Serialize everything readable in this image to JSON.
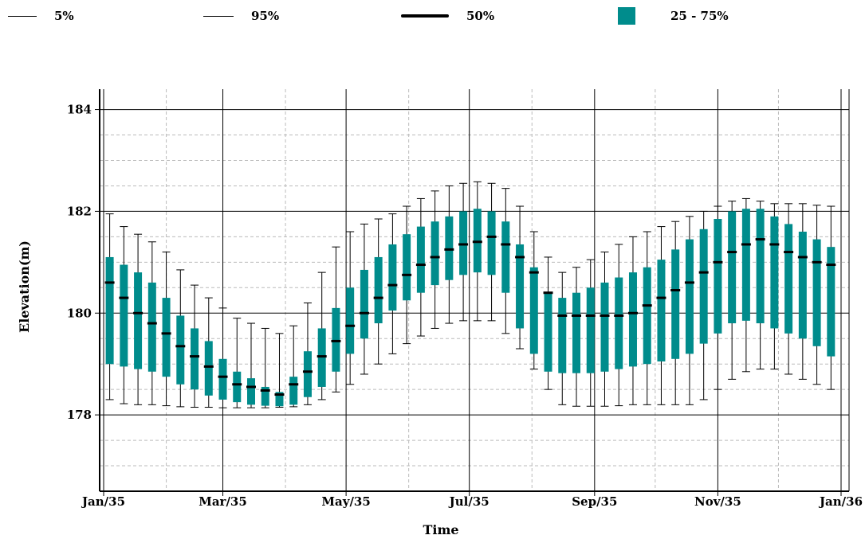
{
  "colors": {
    "box": "#008C8C",
    "median": "#000000",
    "whisker": "#000000",
    "grid": "#bbbbbb",
    "major_grid": "#000000"
  },
  "legend": {
    "p5": {
      "label": "5%",
      "icon": "thin-line"
    },
    "p95": {
      "label": "95%",
      "icon": "thin-line"
    },
    "p50": {
      "label": "50%",
      "icon": "thick-line"
    },
    "iqr": {
      "label": "25 - 75%",
      "icon": "teal-box"
    }
  },
  "chart_data": {
    "type": "box",
    "xlabel": "Time",
    "ylabel": "Elevation(m)",
    "xlim": [
      "1935-01-01",
      "1936-01-01"
    ],
    "ylim": [
      176.5,
      184.4
    ],
    "yticks": [
      178,
      180,
      182,
      184
    ],
    "xticks": [
      {
        "date": "1935-01-01",
        "label": "Jan/35"
      },
      {
        "date": "1935-03-01",
        "label": "Mar/35"
      },
      {
        "date": "1935-05-01",
        "label": "May/35"
      },
      {
        "date": "1935-07-01",
        "label": "Jul/35"
      },
      {
        "date": "1935-09-01",
        "label": "Sep/35"
      },
      {
        "date": "1935-11-01",
        "label": "Nov/35"
      },
      {
        "date": "1936-01-01",
        "label": "Jan/36"
      }
    ],
    "grid": true,
    "legend_position": "top",
    "series_note": "one box per week",
    "x": [
      "1935-01-04",
      "1935-01-11",
      "1935-01-18",
      "1935-01-25",
      "1935-02-01",
      "1935-02-08",
      "1935-02-15",
      "1935-02-22",
      "1935-03-01",
      "1935-03-08",
      "1935-03-15",
      "1935-03-22",
      "1935-03-29",
      "1935-04-05",
      "1935-04-12",
      "1935-04-19",
      "1935-04-26",
      "1935-05-03",
      "1935-05-10",
      "1935-05-17",
      "1935-05-24",
      "1935-05-31",
      "1935-06-07",
      "1935-06-14",
      "1935-06-21",
      "1935-06-28",
      "1935-07-05",
      "1935-07-12",
      "1935-07-19",
      "1935-07-26",
      "1935-08-02",
      "1935-08-09",
      "1935-08-16",
      "1935-08-23",
      "1935-08-30",
      "1935-09-06",
      "1935-09-13",
      "1935-09-20",
      "1935-09-27",
      "1935-10-04",
      "1935-10-11",
      "1935-10-18",
      "1935-10-25",
      "1935-11-01",
      "1935-11-08",
      "1935-11-15",
      "1935-11-22",
      "1935-11-29",
      "1935-12-06",
      "1935-12-13",
      "1935-12-20",
      "1935-12-27"
    ],
    "p5": [
      178.3,
      178.22,
      178.2,
      178.2,
      178.18,
      178.16,
      178.15,
      178.15,
      178.14,
      178.14,
      178.14,
      178.14,
      178.15,
      178.16,
      178.2,
      178.3,
      178.45,
      178.6,
      178.8,
      179.0,
      179.2,
      179.4,
      179.55,
      179.7,
      179.8,
      179.85,
      179.85,
      179.85,
      179.6,
      179.3,
      178.9,
      178.5,
      178.2,
      178.17,
      178.17,
      178.17,
      178.18,
      178.2,
      178.2,
      178.2,
      178.2,
      178.2,
      178.3,
      178.5,
      178.7,
      178.85,
      178.9,
      178.9,
      178.8,
      178.7,
      178.6,
      178.5
    ],
    "p25": [
      179.0,
      178.95,
      178.9,
      178.85,
      178.75,
      178.6,
      178.5,
      178.38,
      178.3,
      178.25,
      178.2,
      178.18,
      178.17,
      178.2,
      178.35,
      178.55,
      178.85,
      179.2,
      179.5,
      179.8,
      180.05,
      180.25,
      180.4,
      180.55,
      180.65,
      180.75,
      180.8,
      180.75,
      180.4,
      179.7,
      179.2,
      178.85,
      178.82,
      178.82,
      178.82,
      178.85,
      178.9,
      178.95,
      179.0,
      179.05,
      179.1,
      179.2,
      179.4,
      179.6,
      179.8,
      179.85,
      179.8,
      179.7,
      179.6,
      179.5,
      179.35,
      179.15
    ],
    "p50": [
      180.6,
      180.3,
      180.0,
      179.8,
      179.6,
      179.35,
      179.15,
      178.95,
      178.75,
      178.6,
      178.55,
      178.48,
      178.4,
      178.6,
      178.85,
      179.15,
      179.45,
      179.75,
      180.0,
      180.3,
      180.55,
      180.75,
      180.95,
      181.1,
      181.25,
      181.35,
      181.4,
      181.5,
      181.35,
      181.1,
      180.8,
      180.4,
      179.95,
      179.95,
      179.95,
      179.95,
      179.95,
      180.0,
      180.15,
      180.3,
      180.45,
      180.6,
      180.8,
      181.0,
      181.2,
      181.35,
      181.45,
      181.35,
      181.2,
      181.1,
      181.0,
      180.95
    ],
    "p75": [
      181.1,
      180.95,
      180.8,
      180.6,
      180.3,
      179.95,
      179.7,
      179.45,
      179.1,
      178.85,
      178.72,
      178.55,
      178.45,
      178.75,
      179.25,
      179.7,
      180.1,
      180.5,
      180.85,
      181.1,
      181.35,
      181.55,
      181.7,
      181.8,
      181.9,
      182.0,
      182.05,
      182.0,
      181.8,
      181.35,
      180.9,
      180.4,
      180.3,
      180.4,
      180.5,
      180.6,
      180.7,
      180.8,
      180.9,
      181.05,
      181.25,
      181.45,
      181.65,
      181.85,
      182.0,
      182.05,
      182.05,
      181.9,
      181.75,
      181.6,
      181.45,
      181.3
    ],
    "p95": [
      181.95,
      181.7,
      181.55,
      181.4,
      181.2,
      180.85,
      180.55,
      180.3,
      180.1,
      179.9,
      179.8,
      179.7,
      179.6,
      179.75,
      180.2,
      180.8,
      181.3,
      181.6,
      181.75,
      181.85,
      181.95,
      182.1,
      182.25,
      182.4,
      182.5,
      182.55,
      182.58,
      182.55,
      182.45,
      182.1,
      181.6,
      181.1,
      180.8,
      180.9,
      181.05,
      181.2,
      181.35,
      181.5,
      181.6,
      181.7,
      181.8,
      181.9,
      182.0,
      182.1,
      182.2,
      182.25,
      182.2,
      182.15,
      182.15,
      182.15,
      182.12,
      182.1
    ]
  }
}
